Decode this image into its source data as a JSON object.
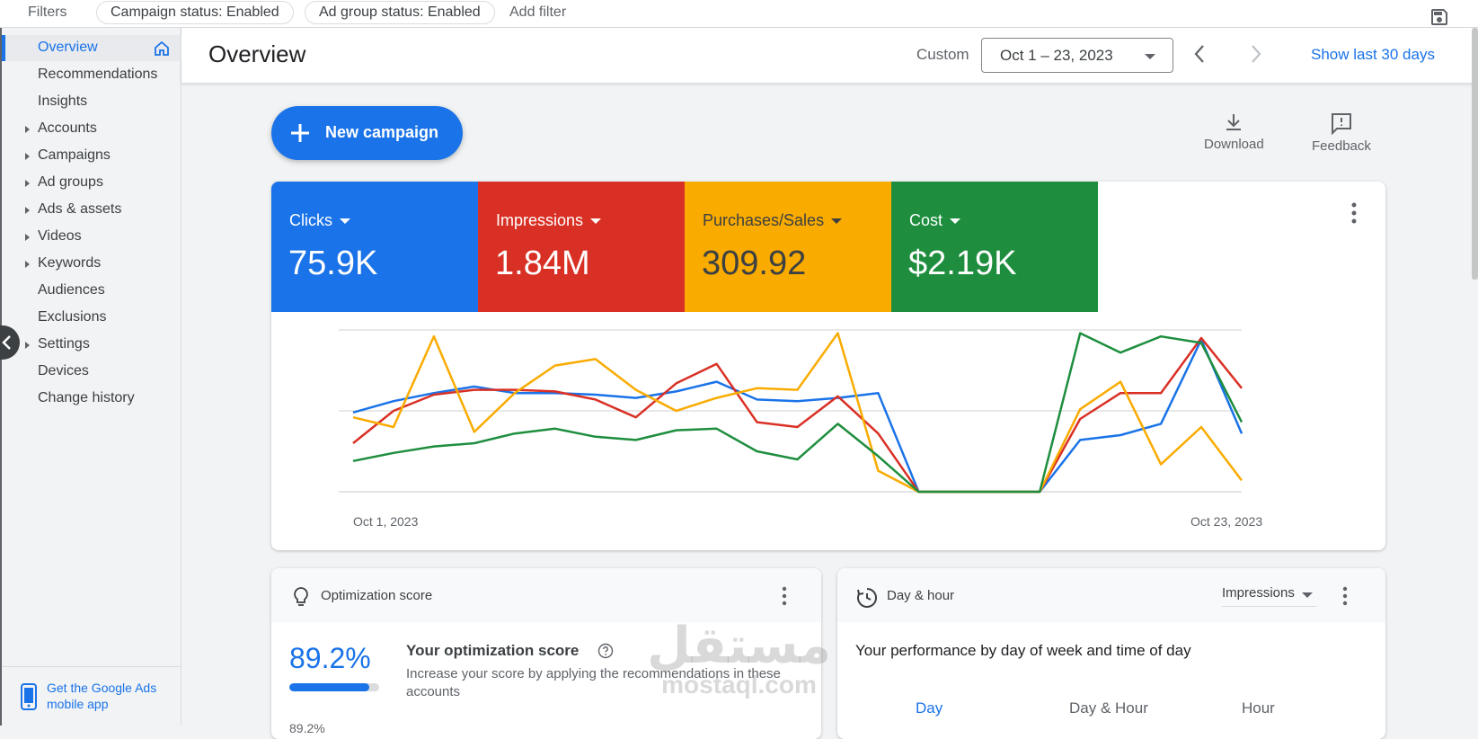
{
  "filters": {
    "label": "Filters",
    "chips": [
      "Campaign status: Enabled",
      "Ad group status: Enabled"
    ],
    "add_filter": "Add filter"
  },
  "sidebar": {
    "items": [
      {
        "label": "Overview",
        "active": true,
        "expandable": false
      },
      {
        "label": "Recommendations",
        "expandable": false
      },
      {
        "label": "Insights",
        "expandable": false
      },
      {
        "label": "Accounts",
        "expandable": true
      },
      {
        "label": "Campaigns",
        "expandable": true
      },
      {
        "label": "Ad groups",
        "expandable": true
      },
      {
        "label": "Ads & assets",
        "expandable": true
      },
      {
        "label": "Videos",
        "expandable": true
      },
      {
        "label": "Keywords",
        "expandable": true
      },
      {
        "label": "Audiences",
        "expandable": false
      },
      {
        "label": "Exclusions",
        "expandable": false
      },
      {
        "label": "Settings",
        "expandable": true
      },
      {
        "label": "Devices",
        "expandable": false
      },
      {
        "label": "Change history",
        "expandable": false
      }
    ],
    "mobile_app": "Get the Google Ads mobile app"
  },
  "header": {
    "title": "Overview",
    "custom_label": "Custom",
    "date_range": "Oct 1 – 23, 2023",
    "show_last": "Show last 30 days"
  },
  "toolbar": {
    "new_campaign": "New campaign",
    "download": "Download",
    "feedback": "Feedback"
  },
  "metrics": [
    {
      "name": "Clicks",
      "value": "75.9K",
      "color": "#1a73e8",
      "text_color": "#ffffff"
    },
    {
      "name": "Impressions",
      "value": "1.84M",
      "color": "#d93025",
      "text_color": "#ffffff"
    },
    {
      "name": "Purchases/Sales",
      "value": "309.92",
      "color": "#f9ab00",
      "text_color": "#3c4043"
    },
    {
      "name": "Cost",
      "value": "$2.19K",
      "color": "#1e8e3e",
      "text_color": "#ffffff"
    }
  ],
  "chart_data": {
    "type": "line",
    "x_start_label": "Oct 1, 2023",
    "x_end_label": "Oct 23, 2023",
    "x": [
      1,
      2,
      3,
      4,
      5,
      6,
      7,
      8,
      9,
      10,
      11,
      12,
      13,
      14,
      15,
      16,
      17,
      18,
      19,
      20,
      21,
      22,
      23
    ],
    "ylim": [
      0,
      1
    ],
    "grid": true,
    "series": [
      {
        "color": "#1a73e8",
        "values": [
          0.49,
          0.56,
          0.61,
          0.65,
          0.61,
          0.61,
          0.6,
          0.58,
          0.62,
          0.68,
          0.57,
          0.56,
          0.58,
          0.61,
          0.0,
          0.0,
          0.0,
          0.0,
          0.32,
          0.35,
          0.42,
          0.94,
          0.36
        ]
      },
      {
        "color": "#d93025",
        "values": [
          0.3,
          0.5,
          0.6,
          0.63,
          0.63,
          0.62,
          0.57,
          0.46,
          0.67,
          0.79,
          0.43,
          0.4,
          0.59,
          0.36,
          0.0,
          0.0,
          0.0,
          0.0,
          0.45,
          0.61,
          0.61,
          0.95,
          0.64
        ]
      },
      {
        "color": "#f9ab00",
        "values": [
          0.46,
          0.4,
          0.96,
          0.37,
          0.61,
          0.78,
          0.82,
          0.63,
          0.5,
          0.58,
          0.64,
          0.63,
          0.98,
          0.13,
          0.0,
          0.0,
          0.0,
          0.0,
          0.51,
          0.68,
          0.17,
          0.4,
          0.07
        ]
      },
      {
        "color": "#1e8e3e",
        "values": [
          0.19,
          0.24,
          0.28,
          0.3,
          0.36,
          0.39,
          0.34,
          0.32,
          0.38,
          0.39,
          0.25,
          0.2,
          0.42,
          0.22,
          0.0,
          0.0,
          0.0,
          0.0,
          0.98,
          0.86,
          0.96,
          0.92,
          0.43
        ]
      }
    ]
  },
  "optimization": {
    "title": "Optimization score",
    "score": "89.2%",
    "score_fraction": 0.892,
    "heading": "Your optimization score",
    "description": "Increase your score by applying the recommendations in these accounts",
    "next_value": "89.2%"
  },
  "day_hour": {
    "title": "Day & hour",
    "selector": "Impressions",
    "heading": "Your performance by day of week and time of day",
    "tabs": [
      "Day",
      "Day & Hour",
      "Hour"
    ]
  },
  "watermark": {
    "arabic": "مستقل",
    "latin": "mostaql.com"
  }
}
